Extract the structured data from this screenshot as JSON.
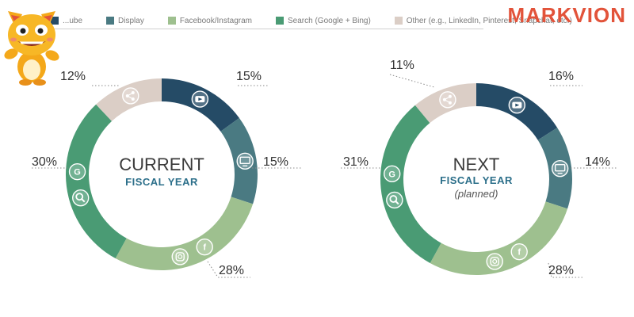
{
  "brand": {
    "logo_text": "MARKVION"
  },
  "legend": [
    {
      "label": "...ube",
      "color": "#254b66"
    },
    {
      "label": "Display",
      "color": "#4a7a82"
    },
    {
      "label": "Facebook/Instagram",
      "color": "#9ec08f"
    },
    {
      "label": "Search (Google + Bing)",
      "color": "#4a9b74"
    },
    {
      "label": "Other (e.g., LinkedIn, Pinterest, Snapchat, etc.)",
      "color": "#dbcec6"
    }
  ],
  "chart_data": [
    {
      "type": "pie",
      "center_title": "CURRENT",
      "center_subtitle": "FISCAL YEAR",
      "center_note": "",
      "slices": [
        {
          "name": "YouTube",
          "value": 15,
          "label": "15%",
          "icon": "youtube-icon",
          "color": "#254b66"
        },
        {
          "name": "Display",
          "value": 15,
          "label": "15%",
          "icon": "monitor-icon",
          "color": "#4a7a82"
        },
        {
          "name": "Facebook/Instagram",
          "value": 28,
          "label": "28%",
          "icon": "facebook-instagram-icons",
          "color": "#9ec08f"
        },
        {
          "name": "Search (Google + Bing)",
          "value": 30,
          "label": "30%",
          "icon": "search-google-icons",
          "color": "#4a9b74"
        },
        {
          "name": "Other",
          "value": 12,
          "label": "12%",
          "icon": "share-icon",
          "color": "#dbcec6"
        }
      ]
    },
    {
      "type": "pie",
      "center_title": "NEXT",
      "center_subtitle": "FISCAL YEAR",
      "center_note": "(planned)",
      "slices": [
        {
          "name": "YouTube",
          "value": 16,
          "label": "16%",
          "icon": "youtube-icon",
          "color": "#254b66"
        },
        {
          "name": "Display",
          "value": 14,
          "label": "14%",
          "icon": "monitor-icon",
          "color": "#4a7a82"
        },
        {
          "name": "Facebook/Instagram",
          "value": 28,
          "label": "28%",
          "icon": "facebook-instagram-icons",
          "color": "#9ec08f"
        },
        {
          "name": "Search (Google + Bing)",
          "value": 31,
          "label": "31%",
          "icon": "search-google-icons",
          "color": "#4a9b74"
        },
        {
          "name": "Other",
          "value": 11,
          "label": "11%",
          "icon": "share-icon",
          "color": "#dbcec6"
        }
      ]
    }
  ]
}
